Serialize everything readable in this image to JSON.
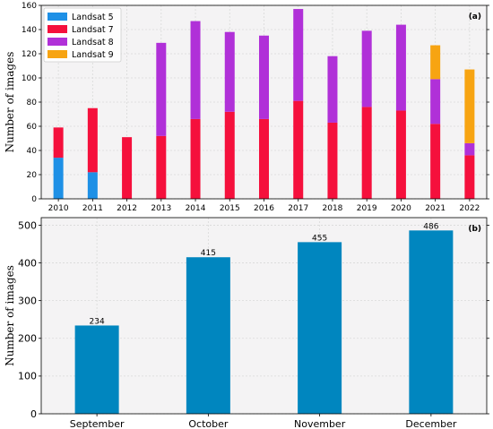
{
  "chart_data": [
    {
      "type": "bar",
      "stacked": true,
      "panel_label": "(a)",
      "ylabel": "Number of images",
      "xlabel": "",
      "ylim": [
        0,
        160
      ],
      "yticks": [
        0,
        20,
        40,
        60,
        80,
        100,
        120,
        140,
        160
      ],
      "grid": true,
      "legend_position": "top-left",
      "categories": [
        "2010",
        "2011",
        "2012",
        "2013",
        "2014",
        "2015",
        "2016",
        "2017",
        "2018",
        "2019",
        "2020",
        "2021",
        "2022"
      ],
      "series": [
        {
          "name": "Landsat 5",
          "color": "#1e90e6",
          "values": [
            34,
            22,
            0,
            0,
            0,
            0,
            0,
            0,
            0,
            0,
            0,
            0,
            0
          ]
        },
        {
          "name": "Landsat 7",
          "color": "#f5103c",
          "values": [
            25,
            53,
            51,
            52,
            66,
            72,
            66,
            81,
            63,
            76,
            73,
            62,
            36
          ]
        },
        {
          "name": "Landsat 8",
          "color": "#b030d8",
          "values": [
            0,
            0,
            0,
            77,
            81,
            66,
            69,
            76,
            55,
            63,
            71,
            37,
            10
          ]
        },
        {
          "name": "Landsat 9",
          "color": "#f7a412",
          "values": [
            0,
            0,
            0,
            0,
            0,
            0,
            0,
            0,
            0,
            0,
            0,
            28,
            61
          ]
        }
      ]
    },
    {
      "type": "bar",
      "panel_label": "(b)",
      "ylabel": "Number of images",
      "xlabel": "",
      "ylim": [
        0,
        520
      ],
      "yticks": [
        0,
        100,
        200,
        300,
        400,
        500
      ],
      "grid": true,
      "color": "#0086bf",
      "categories": [
        "September",
        "October",
        "November",
        "December"
      ],
      "values": [
        234,
        415,
        455,
        486
      ],
      "value_labels": [
        "234",
        "415",
        "455",
        "486"
      ]
    }
  ]
}
